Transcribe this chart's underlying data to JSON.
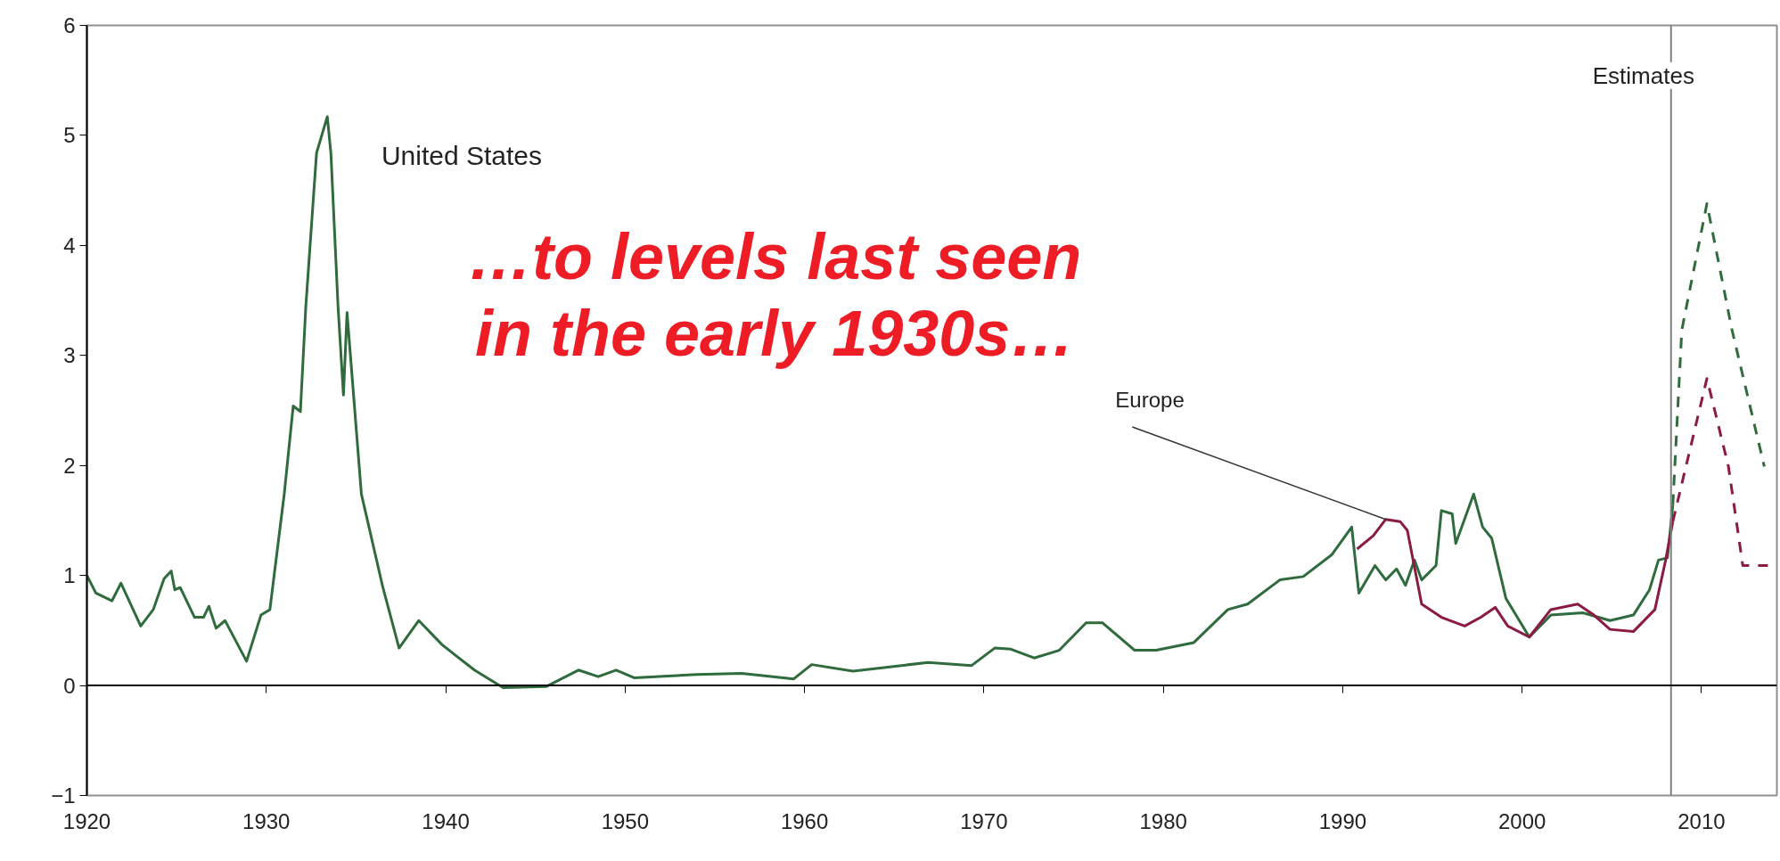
{
  "chart_data": {
    "type": "line",
    "xlim": [
      1920,
      2014.2
    ],
    "ylim": [
      -1,
      6
    ],
    "xticks": [
      1920,
      1930,
      1940,
      1950,
      1960,
      1970,
      1980,
      1990,
      2000,
      2010
    ],
    "yticks": [
      -1,
      0,
      1,
      2,
      3,
      4,
      5,
      6
    ],
    "grid": false,
    "marker": "none",
    "annotations": [
      "…to levels last seen in the early 1930s…",
      {
        "text": "Europe",
        "x": 1992.4,
        "y": 1.51
      }
    ],
    "ref_lines": [
      {
        "axis": "x",
        "value": 2008.3,
        "label": "Estimates",
        "color": "#808080"
      },
      {
        "axis": "y",
        "value": 0,
        "color": "#000000"
      }
    ],
    "series": [
      {
        "name": "United States",
        "color": "#2f6b3c",
        "line_style": "solid",
        "x": [
          1920,
          1920.5,
          1921.4,
          1921.9,
          1923.0,
          1923.7,
          1924.3,
          1924.7,
          1924.9,
          1925.2,
          1926.0,
          1926.5,
          1926.8,
          1927.2,
          1927.7,
          1928.9,
          1929.7,
          1930.2,
          1931.0,
          1931.5,
          1931.9,
          1932.2,
          1932.8,
          1933.4,
          1933.6,
          1934.0,
          1934.3,
          1934.5,
          1935.3,
          1936.5,
          1937.4,
          1938.5,
          1939.8,
          1941.6,
          1943.2,
          1945.6,
          1947.4,
          1948.5,
          1949.5,
          1950.5,
          1954.0,
          1956.5,
          1959.4,
          1960.4,
          1962.7,
          1966.9,
          1969.3,
          1970.6,
          1971.5,
          1972.8,
          1974.2,
          1975.7,
          1976.6,
          1978.4,
          1979.6,
          1981.7,
          1983.6,
          1984.7,
          1986.5,
          1987.8,
          1989.4,
          1990.5,
          1990.9,
          1991.8,
          1992.4,
          1993.0,
          1993.5,
          1994.0,
          1994.4,
          1995.2,
          1995.5,
          1996.1,
          1996.3,
          1997.3,
          1997.8,
          1998.3,
          1999.1,
          2000.4,
          2001.6,
          2003.4,
          2004.9,
          2006.2,
          2007.1,
          2007.6,
          2008.1,
          2008.4
        ],
        "values": [
          1.0,
          0.84,
          0.77,
          0.93,
          0.54,
          0.69,
          0.97,
          1.04,
          0.87,
          0.89,
          0.62,
          0.62,
          0.72,
          0.52,
          0.59,
          0.22,
          0.64,
          0.69,
          1.74,
          2.54,
          2.49,
          3.44,
          4.84,
          5.17,
          4.84,
          3.44,
          2.64,
          3.39,
          1.74,
          0.89,
          0.34,
          0.59,
          0.37,
          0.14,
          -0.02,
          -0.01,
          0.14,
          0.08,
          0.14,
          0.07,
          0.1,
          0.11,
          0.06,
          0.19,
          0.13,
          0.21,
          0.18,
          0.34,
          0.33,
          0.25,
          0.32,
          0.57,
          0.57,
          0.32,
          0.32,
          0.39,
          0.69,
          0.74,
          0.96,
          0.99,
          1.19,
          1.44,
          0.84,
          1.09,
          0.96,
          1.06,
          0.91,
          1.14,
          0.96,
          1.09,
          1.59,
          1.56,
          1.29,
          1.74,
          1.44,
          1.34,
          0.79,
          0.44,
          0.64,
          0.66,
          0.59,
          0.64,
          0.87,
          1.14,
          1.16,
          1.64
        ]
      },
      {
        "color": "#2f6b3c",
        "line_style": "dashed",
        "x": [
          2008.4,
          2008.9,
          2010.3,
          2011.7,
          2013.5
        ],
        "values": [
          1.64,
          3.23,
          4.38,
          3.23,
          1.99
        ]
      },
      {
        "color": "#8b1a44",
        "line_style": "solid",
        "x": [
          1990.8,
          1991.7,
          1992.4,
          1993.2,
          1993.6,
          1994.4,
          1995.5,
          1996.8,
          1997.7,
          1998.5,
          1999.2,
          2000.4,
          2001.6,
          2003.1,
          2004.0,
          2004.9,
          2006.2,
          2007.4,
          2008.0,
          2008.4
        ],
        "values": [
          1.24,
          1.36,
          1.51,
          1.49,
          1.41,
          0.74,
          0.62,
          0.54,
          0.62,
          0.71,
          0.54,
          0.44,
          0.69,
          0.74,
          0.64,
          0.51,
          0.49,
          0.69,
          1.14,
          1.49
        ]
      },
      {
        "color": "#8b1a44",
        "line_style": "dashed",
        "x": [
          2008.4,
          2010.3,
          2011.5,
          2012.3,
          2013.7
        ],
        "values": [
          1.49,
          2.79,
          1.99,
          1.09,
          1.09
        ]
      }
    ]
  }
}
